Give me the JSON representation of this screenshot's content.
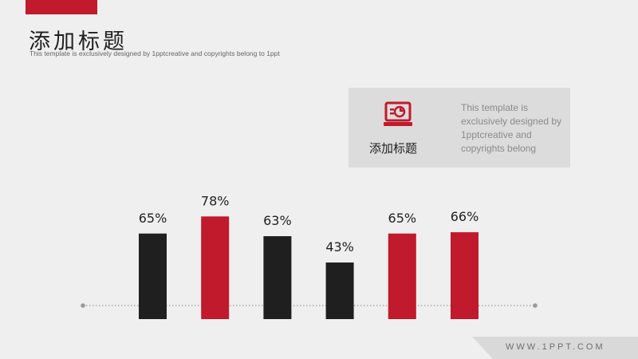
{
  "header": {
    "title": "添加标题",
    "subtitle": "This template is exclusively designed by 1pptcreative and copyrights belong to 1ppt"
  },
  "card": {
    "icon": "laptop-chart-icon",
    "title": "添加标题",
    "text": "This template is exclusively designed by 1pptcreative and copyrights belong"
  },
  "footer": {
    "url": "WWW.1PPT.COM"
  },
  "colors": {
    "accent": "#c01a2c",
    "dark": "#1f1f1f",
    "baseline": "#9a9a9a"
  },
  "chart_data": {
    "type": "bar",
    "categories": [
      "",
      "",
      "",
      "",
      "",
      ""
    ],
    "values": [
      65,
      78,
      63,
      43,
      65,
      66
    ],
    "labels": [
      "65%",
      "78%",
      "63%",
      "43%",
      "65%",
      "66%"
    ],
    "bar_colors": [
      "#1f1f1f",
      "#c01a2c",
      "#1f1f1f",
      "#1f1f1f",
      "#c01a2c",
      "#c01a2c"
    ],
    "ylim": [
      0,
      100
    ],
    "grid": false,
    "legend": "none",
    "baseline": "dotted"
  }
}
